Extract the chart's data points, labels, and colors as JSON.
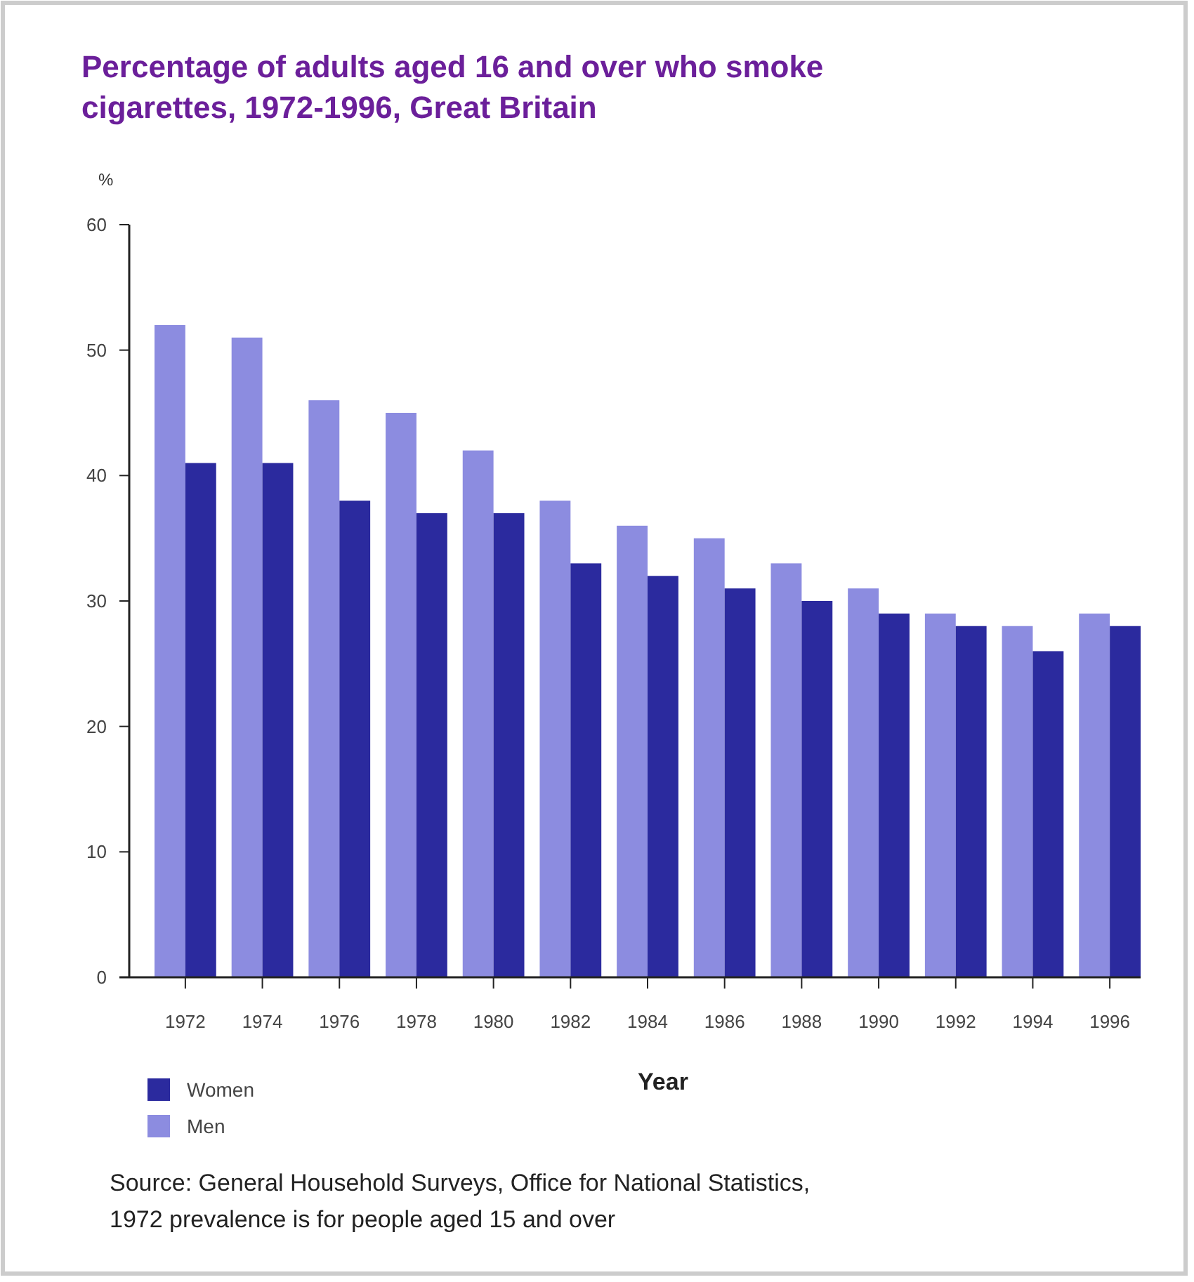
{
  "chart_data": {
    "type": "bar",
    "title": "Percentage of adults aged 16 and over who smoke cigarettes, 1972-1996, Great Britain",
    "xlabel": "Year",
    "ylabel": "%",
    "categories": [
      "1972",
      "1974",
      "1976",
      "1978",
      "1980",
      "1982",
      "1984",
      "1986",
      "1988",
      "1990",
      "1992",
      "1994",
      "1996"
    ],
    "series": [
      {
        "name": "Men",
        "color": "#8c8ce0",
        "values": [
          52,
          51,
          46,
          45,
          42,
          38,
          36,
          35,
          33,
          31,
          29,
          28,
          29
        ]
      },
      {
        "name": "Women",
        "color": "#2b2a9e",
        "values": [
          41,
          41,
          38,
          37,
          37,
          33,
          32,
          31,
          30,
          29,
          28,
          26,
          28
        ]
      }
    ],
    "ylim": [
      0,
      60
    ],
    "yticks": [
      0,
      10,
      20,
      30,
      40,
      50,
      60
    ],
    "grid": false,
    "legend": "bottom left",
    "annotations": [
      "Source: General Household Surveys, Office for National Statistics,",
      "1972 prevalence is for people aged 15 and over"
    ]
  }
}
